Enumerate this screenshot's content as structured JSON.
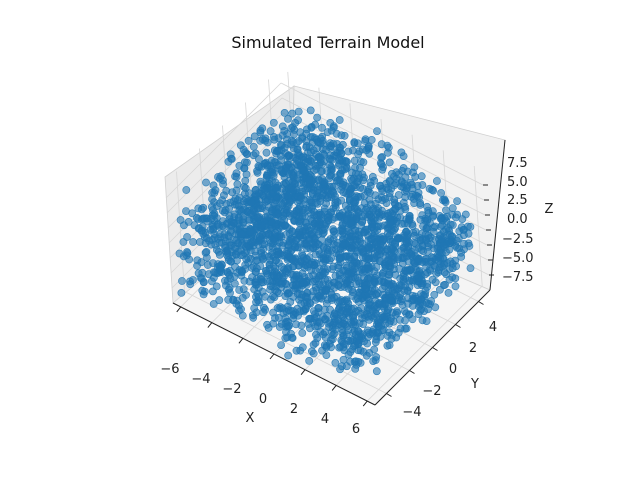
{
  "chart_data": {
    "type": "scatter",
    "title": "Simulated Terrain Model",
    "xlabel": "X",
    "ylabel": "Y",
    "zlabel": "Z",
    "x_ticks": [
      "−6",
      "−4",
      "−2",
      "0",
      "2",
      "4",
      "6"
    ],
    "y_ticks": [
      "−4",
      "−2",
      "0",
      "2",
      "4"
    ],
    "z_ticks": [
      "7.5",
      "5.0",
      "2.5",
      "0.0",
      "−2.5",
      "−5.0",
      "−7.5"
    ],
    "xlim": [
      -6.5,
      6.5
    ],
    "ylim": [
      -5,
      5
    ],
    "zlim": [
      -10,
      10
    ],
    "grid": true,
    "projection": "3d",
    "series": [
      {
        "color": "#1f77b4",
        "marker": "circle",
        "alpha": 0.6,
        "envelope": {
          "x": [
            -6,
            -5,
            -4,
            -3,
            -2,
            -1,
            0,
            1,
            2,
            3,
            4,
            5,
            6
          ],
          "z_upper": [
            8,
            6.5,
            6.5,
            7,
            7.5,
            8.5,
            8.5,
            8,
            7,
            6,
            5,
            4,
            3
          ],
          "z_lower": [
            -9,
            -8,
            -7.5,
            -8,
            -8.5,
            -9,
            -9.5,
            -9.5,
            -9,
            -8.5,
            -8,
            -7.5,
            -7
          ],
          "y_range": [
            -5,
            5
          ]
        }
      }
    ]
  }
}
